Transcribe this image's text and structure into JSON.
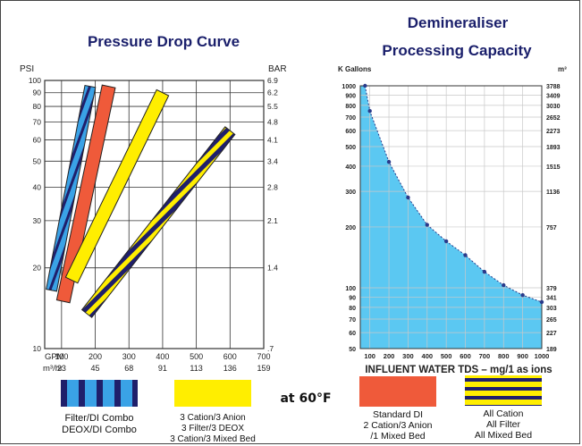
{
  "chart_data": [
    {
      "type": "line",
      "title": "Pressure Drop Curve",
      "y_left_unit": "PSI",
      "y_right_unit": "BAR",
      "x_unit_top": "GPM",
      "x_unit_bottom": "m³/hr",
      "x_range": [
        50,
        700
      ],
      "y_range": [
        10,
        100
      ],
      "y_scale": "log",
      "grid": true,
      "x_ticks": [
        "100",
        "200",
        "300",
        "400",
        "500",
        "600",
        "700"
      ],
      "x_ticks_m3": [
        "23",
        "45",
        "68",
        "91",
        "113",
        "136",
        "159"
      ],
      "y_ticks_psi": [
        "10",
        "20",
        "30",
        "40",
        "50",
        "60",
        "70",
        "80",
        "90",
        "100"
      ],
      "y_ticks_bar": [
        ".7",
        "1.4",
        "2.1",
        "2.8",
        "3.4",
        "4.1",
        "4.8",
        "5.5",
        "6.2",
        "6.9"
      ],
      "series": [
        {
          "legend_index": 0,
          "x": [
            70,
            185
          ],
          "y": [
            16.5,
            95
          ],
          "pattern": "blue-stripes"
        },
        {
          "legend_index": 3,
          "x": [
            105,
            240
          ],
          "y": [
            15,
            95
          ],
          "pattern": "solid-orange"
        },
        {
          "legend_index": 1,
          "x": [
            130,
            400
          ],
          "y": [
            18,
            90
          ],
          "pattern": "solid-yellow"
        },
        {
          "legend_index": 2,
          "x": [
            175,
            600
          ],
          "y": [
            13.5,
            65
          ],
          "pattern": "navy-yellow-hatch"
        }
      ],
      "colors": {
        "blue": "#3aa2e6",
        "navy": "#1f1f6b",
        "orange": "#ef5a3a",
        "yellow": "#ffee00"
      }
    },
    {
      "type": "area",
      "title_lines": [
        "Demineraliser",
        "Processing Capacity"
      ],
      "y_left_unit": "K Gallons",
      "y_right_unit": "m³",
      "xlabel": "INFLUENT WATER TDS – mg/1 as ions",
      "x_range": [
        50,
        1000
      ],
      "y_range": [
        50,
        1000
      ],
      "y_scale": "log",
      "x": [
        75,
        100,
        200,
        300,
        400,
        500,
        600,
        700,
        800,
        900,
        1000
      ],
      "y": [
        1000,
        750,
        420,
        280,
        205,
        170,
        145,
        120,
        103,
        92,
        85
      ],
      "x_ticks": [
        "100",
        "200",
        "300",
        "400",
        "500",
        "600",
        "700",
        "800",
        "900",
        "1000"
      ],
      "y_ticks_left": [
        "50",
        "60",
        "70",
        "80",
        "90",
        "100",
        "200",
        "300",
        "400",
        "500",
        "600",
        "700",
        "800",
        "900",
        "1000"
      ],
      "y_ticks_right": [
        "189",
        "227",
        "265",
        "303",
        "341",
        "379",
        "757",
        "1136",
        "1515",
        "1893",
        "2273",
        "2652",
        "3030",
        "3409",
        "3788"
      ],
      "fill_color": "#5bc8f2"
    }
  ],
  "legend": {
    "temperature": "at 60°F",
    "items": [
      {
        "lines": [
          "Filter/DI Combo",
          "DEOX/DI Combo"
        ]
      },
      {
        "lines": [
          "3 Cation/3 Anion",
          "3 Filter/3 DEOX",
          "3 Cation/3 Mixed Bed"
        ]
      },
      {
        "lines": [
          "Standard DI",
          "2 Cation/3 Anion",
          "/1 Mixed Bed"
        ]
      },
      {
        "lines": [
          "All Cation",
          "All Filter",
          "All Mixed Bed"
        ]
      }
    ]
  }
}
